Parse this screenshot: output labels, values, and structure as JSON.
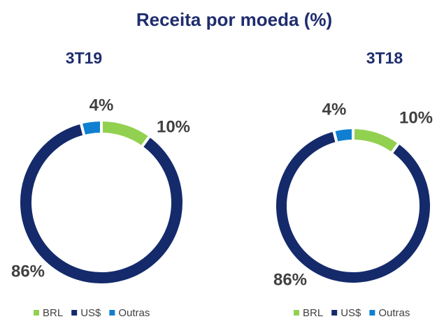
{
  "title": "Receita por moeda (%)",
  "chart_data": [
    {
      "type": "pie",
      "title": "3T19",
      "categories": [
        "BRL",
        "US$",
        "Outras"
      ],
      "values": [
        10,
        86,
        4
      ],
      "value_labels": [
        "10%",
        "86%",
        "4%"
      ],
      "colors": [
        "#92d050",
        "#142a6b",
        "#0f7fd1"
      ],
      "donut": true
    },
    {
      "type": "pie",
      "title": "3T18",
      "categories": [
        "BRL",
        "US$",
        "Outras"
      ],
      "values": [
        10,
        86,
        4
      ],
      "value_labels": [
        "10%",
        "86%",
        "4%"
      ],
      "colors": [
        "#92d050",
        "#142a6b",
        "#0f7fd1"
      ],
      "donut": true
    }
  ]
}
